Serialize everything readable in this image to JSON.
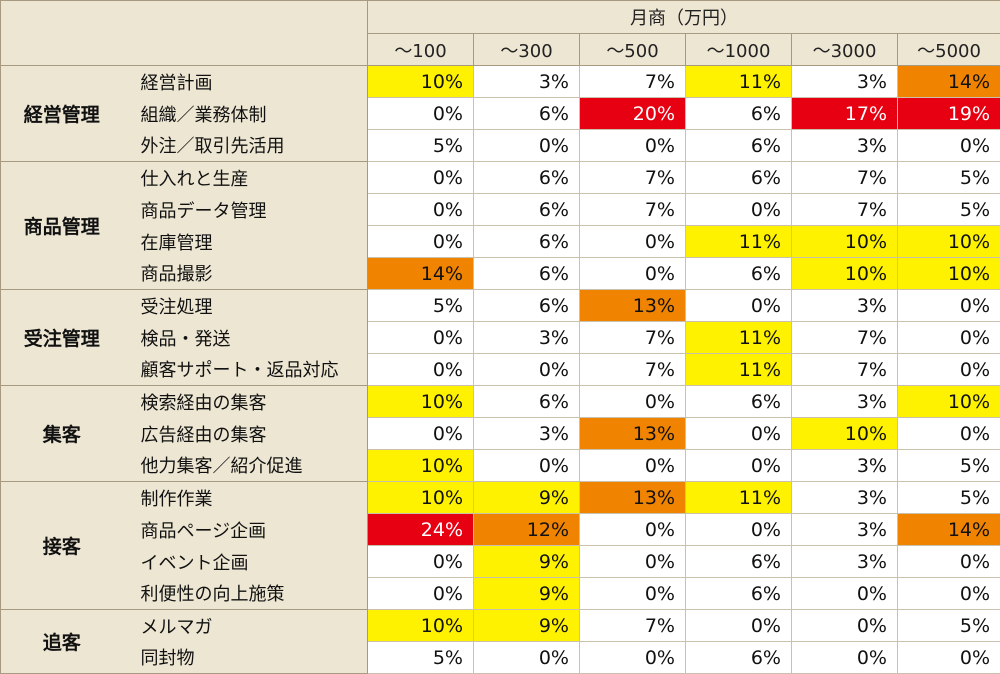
{
  "title": "月商（万円）",
  "columns": [
    "～100",
    "～300",
    "～500",
    "～1000",
    "～3000",
    "～5000"
  ],
  "colors": {
    "yellow": "#fff200",
    "orange": "#f08300",
    "red": "#e60012",
    "header": "#ede6d3"
  },
  "groups": [
    {
      "name": "経営管理",
      "rows": [
        {
          "label": "経営計画",
          "values": [
            "10%",
            "3%",
            "7%",
            "11%",
            "3%",
            "14%"
          ],
          "levels": [
            "y",
            "",
            "",
            "y",
            "",
            "o"
          ]
        },
        {
          "label": "組織／業務体制",
          "values": [
            "0%",
            "6%",
            "20%",
            "6%",
            "17%",
            "19%"
          ],
          "levels": [
            "",
            "",
            "r",
            "",
            "r",
            "r"
          ]
        },
        {
          "label": "外注／取引先活用",
          "values": [
            "5%",
            "0%",
            "0%",
            "6%",
            "3%",
            "0%"
          ],
          "levels": [
            "",
            "",
            "",
            "",
            "",
            ""
          ]
        }
      ]
    },
    {
      "name": "商品管理",
      "rows": [
        {
          "label": "仕入れと生産",
          "values": [
            "0%",
            "6%",
            "7%",
            "6%",
            "7%",
            "5%"
          ],
          "levels": [
            "",
            "",
            "",
            "",
            "",
            ""
          ]
        },
        {
          "label": "商品データ管理",
          "values": [
            "0%",
            "6%",
            "7%",
            "0%",
            "7%",
            "5%"
          ],
          "levels": [
            "",
            "",
            "",
            "",
            "",
            ""
          ]
        },
        {
          "label": "在庫管理",
          "values": [
            "0%",
            "6%",
            "0%",
            "11%",
            "10%",
            "10%"
          ],
          "levels": [
            "",
            "",
            "",
            "y",
            "y",
            "y"
          ]
        },
        {
          "label": "商品撮影",
          "values": [
            "14%",
            "6%",
            "0%",
            "6%",
            "10%",
            "10%"
          ],
          "levels": [
            "o",
            "",
            "",
            "",
            "y",
            "y"
          ]
        }
      ]
    },
    {
      "name": "受注管理",
      "rows": [
        {
          "label": "受注処理",
          "values": [
            "5%",
            "6%",
            "13%",
            "0%",
            "3%",
            "0%"
          ],
          "levels": [
            "",
            "",
            "o",
            "",
            "",
            ""
          ]
        },
        {
          "label": "検品・発送",
          "values": [
            "0%",
            "3%",
            "7%",
            "11%",
            "7%",
            "0%"
          ],
          "levels": [
            "",
            "",
            "",
            "y",
            "",
            ""
          ]
        },
        {
          "label": "顧客サポート・返品対応",
          "values": [
            "0%",
            "0%",
            "7%",
            "11%",
            "7%",
            "0%"
          ],
          "levels": [
            "",
            "",
            "",
            "y",
            "",
            ""
          ]
        }
      ]
    },
    {
      "name": "集客",
      "rows": [
        {
          "label": "検索経由の集客",
          "values": [
            "10%",
            "6%",
            "0%",
            "6%",
            "3%",
            "10%"
          ],
          "levels": [
            "y",
            "",
            "",
            "",
            "",
            "y"
          ]
        },
        {
          "label": "広告経由の集客",
          "values": [
            "0%",
            "3%",
            "13%",
            "0%",
            "10%",
            "0%"
          ],
          "levels": [
            "",
            "",
            "o",
            "",
            "y",
            ""
          ]
        },
        {
          "label": "他力集客／紹介促進",
          "values": [
            "10%",
            "0%",
            "0%",
            "0%",
            "3%",
            "5%"
          ],
          "levels": [
            "y",
            "",
            "",
            "",
            "",
            ""
          ]
        }
      ]
    },
    {
      "name": "接客",
      "rows": [
        {
          "label": "制作作業",
          "values": [
            "10%",
            "9%",
            "13%",
            "11%",
            "3%",
            "5%"
          ],
          "levels": [
            "y",
            "y",
            "o",
            "y",
            "",
            ""
          ]
        },
        {
          "label": "商品ページ企画",
          "values": [
            "24%",
            "12%",
            "0%",
            "0%",
            "3%",
            "14%"
          ],
          "levels": [
            "r",
            "o",
            "",
            "",
            "",
            "o"
          ]
        },
        {
          "label": "イベント企画",
          "values": [
            "0%",
            "9%",
            "0%",
            "6%",
            "3%",
            "0%"
          ],
          "levels": [
            "",
            "y",
            "",
            "",
            "",
            ""
          ]
        },
        {
          "label": "利便性の向上施策",
          "values": [
            "0%",
            "9%",
            "0%",
            "6%",
            "0%",
            "0%"
          ],
          "levels": [
            "",
            "y",
            "",
            "",
            "",
            ""
          ]
        }
      ]
    },
    {
      "name": "追客",
      "rows": [
        {
          "label": "メルマガ",
          "values": [
            "10%",
            "9%",
            "7%",
            "0%",
            "0%",
            "5%"
          ],
          "levels": [
            "y",
            "y",
            "",
            "",
            "",
            ""
          ]
        },
        {
          "label": "同封物",
          "values": [
            "5%",
            "0%",
            "0%",
            "6%",
            "0%",
            "0%"
          ],
          "levels": [
            "",
            "",
            "",
            "",
            "",
            ""
          ]
        }
      ]
    }
  ]
}
